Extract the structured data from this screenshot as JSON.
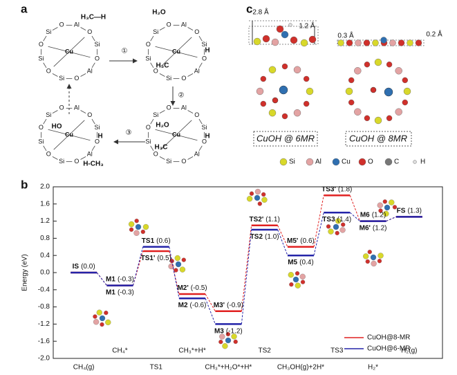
{
  "panel_a": {
    "label": "a",
    "steps": [
      "①",
      "②",
      "③"
    ],
    "structures": [
      {
        "atoms": [
          "O",
          "Al",
          "O",
          "Si",
          "O",
          "Al",
          "O",
          "Si",
          "O",
          "Si",
          "O",
          "Si",
          "Cu"
        ],
        "adsorbates": [
          {
            "text": "H₃C—H",
            "color": "#2323a8"
          }
        ]
      },
      {
        "atoms": [
          "O",
          "Al",
          "O",
          "Si",
          "O",
          "Al",
          "O",
          "Si",
          "O",
          "Si",
          "O",
          "Si",
          "Cu"
        ],
        "adsorbates": [
          {
            "text": "H₂O",
            "color": "#e02020"
          },
          {
            "text": "H",
            "color": "#2323a8"
          },
          {
            "text": "H₃C",
            "color": "#2323a8"
          }
        ]
      },
      {
        "atoms": [
          "O",
          "Al",
          "O",
          "Si",
          "O",
          "Al",
          "O",
          "Si",
          "O",
          "Si",
          "O",
          "Si",
          "Cu"
        ],
        "adsorbates": [
          {
            "text": "H₂O",
            "color": "#e02020"
          },
          {
            "text": "H",
            "color": "#2323a8"
          },
          {
            "text": "H₃C",
            "color": "#2323a8"
          }
        ]
      },
      {
        "atoms": [
          "O",
          "Al",
          "O",
          "Si",
          "O",
          "Al",
          "O",
          "Si",
          "O",
          "Si",
          "O",
          "Si",
          "Cu"
        ],
        "adsorbates": [
          {
            "text": "HO",
            "color": "#e02020"
          },
          {
            "text": "H",
            "color": "#2323a8"
          },
          {
            "text": "H-CH₃",
            "color": "#e02020"
          }
        ]
      }
    ]
  },
  "panel_c": {
    "label": "c",
    "dimensions": [
      "2.8 Å",
      "1.2 Å",
      "0.3 Å",
      "0.2 Å"
    ],
    "captions": [
      "CuOH @ 6MR",
      "CuOH @ 8MR"
    ],
    "legend": [
      {
        "name": "Si",
        "color": "#d8d82a"
      },
      {
        "name": "Al",
        "color": "#e3a3a3"
      },
      {
        "name": "Cu",
        "color": "#2f6fb0"
      },
      {
        "name": "O",
        "color": "#d0302b"
      },
      {
        "name": "C",
        "color": "#777777"
      },
      {
        "name": "H",
        "color": "#dddddd"
      }
    ]
  },
  "chart_data": {
    "type": "energy-profile",
    "panel_label": "b",
    "y_label": "Energy (eV)",
    "categories": [
      "CH₄(g)",
      "CH₄*",
      "TS1",
      "CH₃*+H*",
      "CH₃*+H₂O*+H*",
      "TS2",
      "CH₃OH(g)+2H*",
      "TS3",
      "H₂*",
      "H₂(g)"
    ],
    "ylim": [
      -2.0,
      2.0
    ],
    "yticks": [
      {
        "value": -2.0,
        "label": "-2.0"
      },
      {
        "value": -1.6,
        "label": "-1.6"
      },
      {
        "value": -1.2,
        "label": "-1.2"
      },
      {
        "value": -0.8,
        "label": "-0.8"
      },
      {
        "value": -0.4,
        "label": "-0.4"
      },
      {
        "value": 0.0,
        "label": "0.0"
      },
      {
        "value": 0.4,
        "label": "0.4"
      },
      {
        "value": 0.8,
        "label": "0.8"
      },
      {
        "value": 1.2,
        "label": "1.2"
      },
      {
        "value": 1.6,
        "label": "1.6"
      },
      {
        "value": 2.0,
        "label": "2.0"
      }
    ],
    "legend_position": "lower right",
    "series": [
      {
        "name": "CuOH@8-MR",
        "color": "#e02020",
        "values": [
          0.0,
          -0.3,
          0.5,
          -0.5,
          -0.9,
          1.1,
          0.6,
          1.8,
          1.2,
          1.3
        ],
        "state_labels": [
          null,
          "M1",
          "TS1'",
          "M2'",
          "M3'",
          "TS2'",
          "M5'",
          "TS3'",
          "M6'",
          null
        ],
        "value_labels": [
          null,
          "(-0.3)",
          "(0.5)",
          "(-0.5)",
          "(-0.9)",
          "(1.1)",
          "(0.6)",
          "(1.8)",
          "(1.2)",
          null
        ]
      },
      {
        "name": "CuOH@6-MR",
        "color": "#2323a8",
        "values": [
          0.0,
          -0.3,
          0.6,
          -0.6,
          -1.2,
          1.0,
          0.4,
          1.4,
          1.2,
          1.3
        ],
        "state_labels": [
          "IS",
          "M1",
          "TS1",
          "M2",
          "M3",
          "TS2",
          "M5",
          "TS3",
          "M6",
          "FS"
        ],
        "value_labels": [
          "(0.0)",
          "(-0.3)",
          "(0.6)",
          "(-0.6)",
          "(-1.2)",
          "(1.0)",
          "(0.4)",
          "(1.4)",
          "(1.2)",
          "(1.3)"
        ]
      }
    ]
  }
}
